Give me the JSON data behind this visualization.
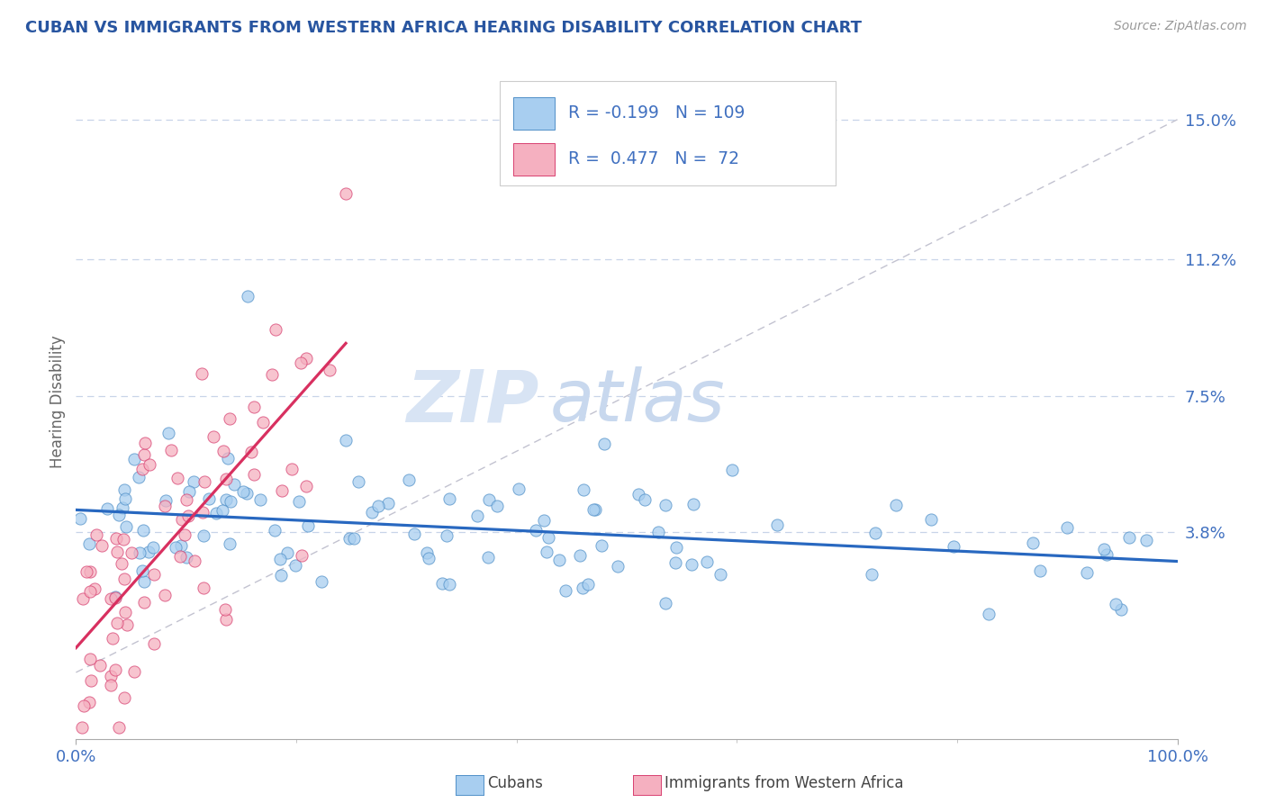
{
  "title": "CUBAN VS IMMIGRANTS FROM WESTERN AFRICA HEARING DISABILITY CORRELATION CHART",
  "source": "Source: ZipAtlas.com",
  "ylabel": "Hearing Disability",
  "xlim": [
    0.0,
    1.0
  ],
  "ylim": [
    -0.018,
    0.165
  ],
  "yticks": [
    0.038,
    0.075,
    0.112,
    0.15
  ],
  "ytick_labels": [
    "3.8%",
    "7.5%",
    "11.2%",
    "15.0%"
  ],
  "xtick_labels": [
    "0.0%",
    "100.0%"
  ],
  "cubans_fill": "#a8cef0",
  "cubans_edge": "#5090c8",
  "wa_fill": "#f5b0c0",
  "wa_edge": "#d84070",
  "trend_cuban_color": "#2868c0",
  "trend_wa_color": "#d83060",
  "ref_line_color": "#b8b8c8",
  "grid_color": "#c8d4e8",
  "R_cuban": -0.199,
  "N_cuban": 109,
  "R_wa": 0.477,
  "N_wa": 72,
  "bg_color": "#ffffff",
  "title_color": "#2855a0",
  "axis_label_color": "#4070c0",
  "watermark_zip_color": "#d8e4f4",
  "watermark_atlas_color": "#c8d8ee",
  "legend_border_color": "#cccccc",
  "bottom_legend_text_color": "#444444"
}
